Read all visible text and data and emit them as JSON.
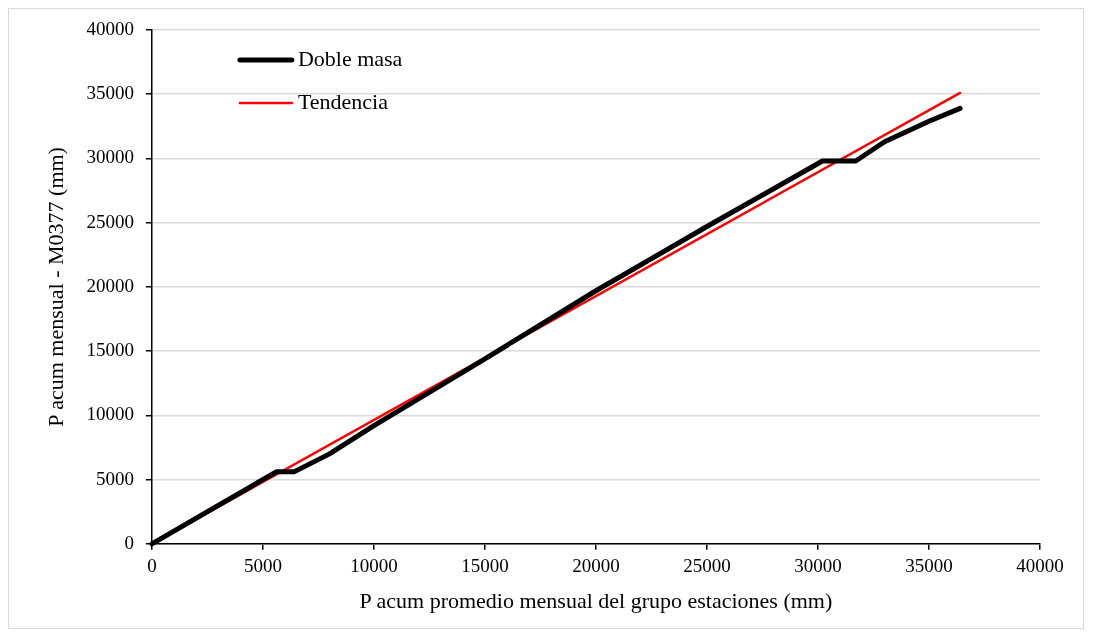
{
  "chart_data": {
    "type": "line",
    "xlabel": "P acum promedio mensual del grupo estaciones (mm)",
    "ylabel": "P acum mensual - M0377 (mm)",
    "xlim": [
      0,
      40000
    ],
    "xticks": [
      0,
      5000,
      10000,
      15000,
      20000,
      25000,
      30000,
      35000,
      40000
    ],
    "ylim": [
      0,
      40000
    ],
    "yticks": [
      0,
      5000,
      10000,
      15000,
      20000,
      25000,
      30000,
      35000,
      40000
    ],
    "grid": "y",
    "legend": "top left",
    "marker": "none",
    "series": [
      {
        "name": "Doble masa",
        "color": "#000000",
        "x": [
          0,
          5600,
          6400,
          8000,
          10000,
          15000,
          20000,
          25000,
          30200,
          31700,
          33000,
          35000,
          36400
        ],
        "values": [
          0,
          5600,
          5600,
          7000,
          9200,
          14400,
          19700,
          24700,
          29800,
          29800,
          31300,
          32900,
          33900
        ]
      },
      {
        "name": "Tendencia",
        "color": "#ff0000",
        "x": [
          0,
          36400
        ],
        "values": [
          0,
          35100
        ]
      }
    ]
  }
}
